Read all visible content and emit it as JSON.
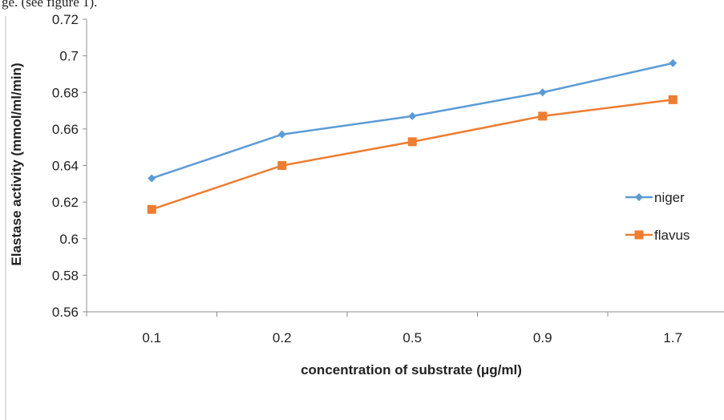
{
  "page": {
    "top_text": "ge. (see figure 1)."
  },
  "chart_data": {
    "type": "line",
    "categories": [
      "0.1",
      "0.2",
      "0.5",
      "0.9",
      "1.7"
    ],
    "series": [
      {
        "name": "niger",
        "values": [
          0.633,
          0.657,
          0.667,
          0.68,
          0.696
        ],
        "color": "#5B9BD5",
        "marker": "diamond"
      },
      {
        "name": "flavus",
        "values": [
          0.616,
          0.64,
          0.653,
          0.667,
          0.676
        ],
        "color": "#ED7D31",
        "marker": "square"
      }
    ],
    "xlabel": "concentration of substrate (μg/ml)",
    "ylabel": "Elastase activity (mmol/ml/min)",
    "ylim": [
      0.56,
      0.72
    ],
    "yticks": [
      "0.56",
      "0.58",
      "0.6",
      "0.62",
      "0.64",
      "0.66",
      "0.68",
      "0.7",
      "0.72"
    ],
    "ytick_values": [
      0.56,
      0.58,
      0.6,
      0.62,
      0.64,
      0.66,
      0.68,
      0.7,
      0.72
    ],
    "grid": false,
    "legend_position": "right"
  }
}
